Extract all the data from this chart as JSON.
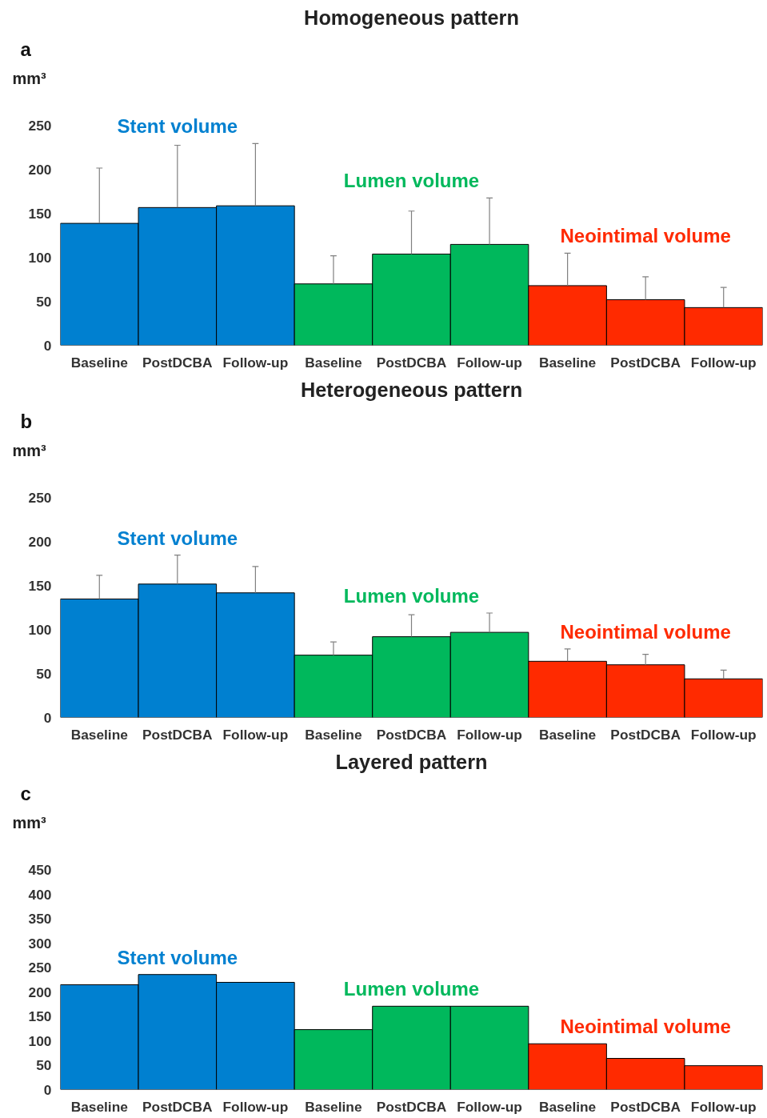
{
  "chart_data": [
    {
      "type": "bar",
      "title": "Homogeneous pattern",
      "ylabel": "mm³",
      "annotations": [
        "a"
      ],
      "categories": [
        "Baseline",
        "PostDCBA",
        "Follow-up",
        "Baseline",
        "PostDCBA",
        "Follow-up",
        "Baseline",
        "PostDCBA",
        "Follow-up"
      ],
      "ylim": [
        0,
        250
      ],
      "yticks": [
        0,
        50,
        100,
        150,
        200,
        250
      ],
      "grid": false,
      "series": [
        {
          "name": "Stent volume",
          "color": "#0080d0",
          "values": [
            139,
            157,
            159,
            null,
            null,
            null,
            null,
            null,
            null
          ],
          "errors": [
            [
              139,
              202
            ],
            [
              157,
              228
            ],
            [
              159,
              230
            ],
            null,
            null,
            null,
            null,
            null,
            null
          ]
        },
        {
          "name": "Lumen volume",
          "color": "#00b85c",
          "values": [
            null,
            null,
            null,
            70,
            104,
            115,
            null,
            null,
            null
          ],
          "errors": [
            null,
            null,
            null,
            [
              70,
              102
            ],
            [
              104,
              153
            ],
            [
              115,
              168
            ],
            null,
            null,
            null
          ]
        },
        {
          "name": "Neointimal volume",
          "color": "#ff2a00",
          "values": [
            null,
            null,
            null,
            null,
            null,
            null,
            68,
            52,
            43
          ],
          "errors": [
            null,
            null,
            null,
            null,
            null,
            null,
            [
              68,
              105
            ],
            [
              52,
              78
            ],
            [
              43,
              66
            ]
          ]
        }
      ]
    },
    {
      "type": "bar",
      "title": "Heterogeneous pattern",
      "ylabel": "mm³",
      "annotations": [
        "b"
      ],
      "categories": [
        "Baseline",
        "PostDCBA",
        "Follow-up",
        "Baseline",
        "PostDCBA",
        "Follow-up",
        "Baseline",
        "PostDCBA",
        "Follow-up"
      ],
      "ylim": [
        0,
        250
      ],
      "yticks": [
        0,
        50,
        100,
        150,
        200,
        250
      ],
      "grid": false,
      "series": [
        {
          "name": "Stent volume",
          "color": "#0080d0",
          "values": [
            135,
            152,
            142,
            null,
            null,
            null,
            null,
            null,
            null
          ],
          "errors": [
            [
              135,
              162
            ],
            [
              152,
              185
            ],
            [
              142,
              172
            ],
            null,
            null,
            null,
            null,
            null,
            null
          ]
        },
        {
          "name": "Lumen volume",
          "color": "#00b85c",
          "values": [
            null,
            null,
            null,
            71,
            92,
            97,
            null,
            null,
            null
          ],
          "errors": [
            null,
            null,
            null,
            [
              71,
              86
            ],
            [
              92,
              117
            ],
            [
              97,
              119
            ],
            null,
            null,
            null
          ]
        },
        {
          "name": "Neointimal volume",
          "color": "#ff2a00",
          "values": [
            null,
            null,
            null,
            null,
            null,
            null,
            64,
            60,
            44
          ],
          "errors": [
            null,
            null,
            null,
            null,
            null,
            null,
            [
              64,
              78
            ],
            [
              60,
              72
            ],
            [
              44,
              54
            ]
          ]
        }
      ]
    },
    {
      "type": "bar",
      "title": "Layered pattern",
      "ylabel": "mm³",
      "annotations": [
        "c"
      ],
      "categories": [
        "Baseline",
        "PostDCBA",
        "Follow-up",
        "Baseline",
        "PostDCBA",
        "Follow-up",
        "Baseline",
        "PostDCBA",
        "Follow-up"
      ],
      "ylim": [
        0,
        450
      ],
      "yticks": [
        0,
        50,
        100,
        150,
        200,
        250,
        300,
        350,
        400,
        450
      ],
      "grid": false,
      "series": [
        {
          "name": "Stent volume",
          "color": "#0080d0",
          "values": [
            215,
            236,
            220,
            null,
            null,
            null,
            null,
            null,
            null
          ]
        },
        {
          "name": "Lumen volume",
          "color": "#00b85c",
          "values": [
            null,
            null,
            null,
            123,
            171,
            171,
            null,
            null,
            null
          ]
        },
        {
          "name": "Neointimal volume",
          "color": "#ff2a00",
          "values": [
            null,
            null,
            null,
            null,
            null,
            null,
            94,
            64,
            49
          ]
        }
      ]
    }
  ]
}
